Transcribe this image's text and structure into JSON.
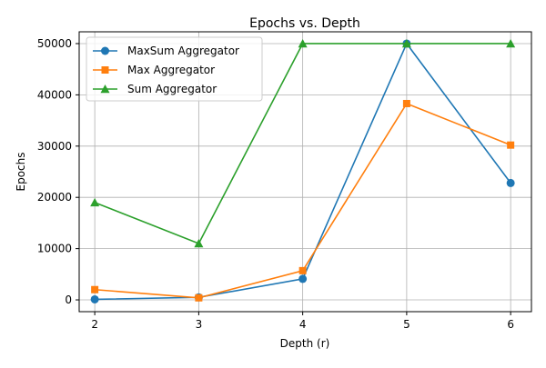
{
  "chart_data": {
    "type": "line",
    "title": "Epochs vs. Depth",
    "xlabel": "Depth (r)",
    "ylabel": "Epochs",
    "x": [
      2,
      3,
      4,
      5,
      6
    ],
    "xticks": [
      "2",
      "3",
      "4",
      "5",
      "6"
    ],
    "yticks": [
      "0",
      "10000",
      "20000",
      "30000",
      "40000",
      "50000"
    ],
    "xlim": [
      1.85,
      6.2
    ],
    "ylim": [
      -2300,
      52300
    ],
    "grid": true,
    "legend_position": "upper-left",
    "series": [
      {
        "name": "MaxSum Aggregator",
        "color": "#1f77b4",
        "marker": "circle",
        "values": [
          100,
          500,
          4100,
          50000,
          22800
        ]
      },
      {
        "name": "Max Aggregator",
        "color": "#ff7f0e",
        "marker": "square",
        "values": [
          2000,
          400,
          5700,
          38300,
          30200
        ]
      },
      {
        "name": "Sum Aggregator",
        "color": "#2ca02c",
        "marker": "triangle",
        "values": [
          19000,
          11000,
          50000,
          50000,
          50000
        ]
      }
    ]
  }
}
